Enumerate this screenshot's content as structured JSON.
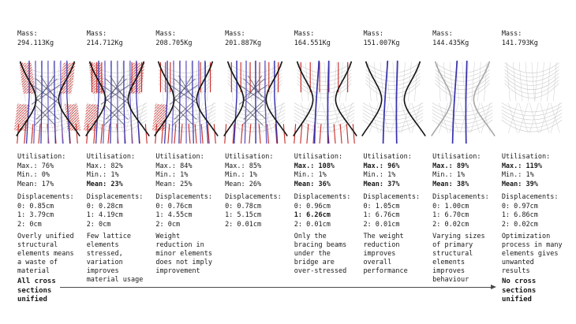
{
  "labels": {
    "mass": "Mass:",
    "utilisation": "Utilisation:",
    "max": "Max.:",
    "min": "Min.:",
    "mean": "Mean:",
    "displacements": "Displacements:"
  },
  "axis": {
    "left_label": "All cross sections unified",
    "right_label": "No cross sections unified"
  },
  "colors": {
    "red": "#c9302c",
    "blue": "#3632ad",
    "blue_alt": "#6b5ec6",
    "mesh": "#c9c9c9",
    "lattice": "#4d4d68",
    "outline": "#141414",
    "outline_light": "#a8a8a8",
    "arrow": "#4a4a4a",
    "text": "#1a1a1a"
  },
  "columns": [
    {
      "mass": "294.113Kg",
      "utilisation": {
        "max": "76%",
        "max_bold": false,
        "min": "0%",
        "mean": "17%",
        "mean_bold": false
      },
      "displacements": [
        {
          "id": "0",
          "value": "0.85cm",
          "bold": false
        },
        {
          "id": "1",
          "value": "3.79cm",
          "bold": false
        },
        {
          "id": "2",
          "value": "0cm",
          "bold": false
        }
      ],
      "note": "Overly unified structural elements means a waste of material",
      "diagram": {
        "outline": "dark",
        "blue_lines": 7,
        "red_top_lines": 0,
        "red_top_layout": "sides",
        "red_hatch_patches": [
          "TL",
          "TR",
          "ML",
          "MR"
        ],
        "red_bottom_lines": 9,
        "dark_lattice": true
      }
    },
    {
      "mass": "214.712Kg",
      "utilisation": {
        "max": "82%",
        "max_bold": false,
        "min": "1%",
        "mean": "23%",
        "mean_bold": true
      },
      "displacements": [
        {
          "id": "0",
          "value": "0.28cm",
          "bold": false
        },
        {
          "id": "1",
          "value": "4.19cm",
          "bold": false
        },
        {
          "id": "2",
          "value": "0cm",
          "bold": false
        }
      ],
      "note": "Few lattice elements stressed, variation improves material usage",
      "diagram": {
        "outline": "dark",
        "blue_lines": 7,
        "red_top_lines": 6,
        "red_top_layout": "sides",
        "red_hatch_patches": [
          "TL",
          "TR",
          "ML"
        ],
        "red_bottom_lines": 9,
        "dark_lattice": true
      }
    },
    {
      "mass": "208.705Kg",
      "utilisation": {
        "max": "84%",
        "max_bold": false,
        "min": "1%",
        "mean": "25%",
        "mean_bold": false
      },
      "displacements": [
        {
          "id": "0",
          "value": "0.76cm",
          "bold": false
        },
        {
          "id": "1",
          "value": "4.55cm",
          "bold": false
        },
        {
          "id": "2",
          "value": "0cm",
          "bold": false
        }
      ],
      "note": "Weight reduction in minor elements does not imply improvement",
      "diagram": {
        "outline": "dark",
        "blue_lines": 7,
        "red_top_lines": 6,
        "red_top_layout": "sides",
        "red_hatch_patches": [
          "ML"
        ],
        "red_bottom_lines": 10,
        "dark_lattice": true
      }
    },
    {
      "mass": "201.887Kg",
      "utilisation": {
        "max": "85%",
        "max_bold": false,
        "min": "1%",
        "mean": "26%",
        "mean_bold": false
      },
      "displacements": [
        {
          "id": "0",
          "value": "0.78cm",
          "bold": false
        },
        {
          "id": "1",
          "value": "5.15cm",
          "bold": false
        },
        {
          "id": "2",
          "value": "0.01cm",
          "bold": false
        }
      ],
      "note": "",
      "diagram": {
        "outline": "dark",
        "blue_lines": 5,
        "red_top_lines": 6,
        "red_top_layout": "center",
        "red_hatch_patches": [],
        "red_bottom_lines": 8,
        "dark_lattice": true
      }
    },
    {
      "mass": "164.551Kg",
      "utilisation": {
        "max": "108%",
        "max_bold": true,
        "min": "1%",
        "mean": "36%",
        "mean_bold": true
      },
      "displacements": [
        {
          "id": "0",
          "value": "0.96cm",
          "bold": false
        },
        {
          "id": "1",
          "value": "6.26cm",
          "bold": true
        },
        {
          "id": "2",
          "value": "0.01cm",
          "bold": false
        }
      ],
      "note": "Only the bracing beams under the bridge are over-stressed",
      "diagram": {
        "outline": "dark",
        "blue_lines": 2,
        "red_top_lines": 6,
        "red_top_layout": "center",
        "red_hatch_patches": [],
        "red_bottom_lines": 10,
        "dark_lattice": false
      }
    },
    {
      "mass": "151.007Kg",
      "utilisation": {
        "max": "96%",
        "max_bold": true,
        "min": "1%",
        "mean": "37%",
        "mean_bold": true
      },
      "displacements": [
        {
          "id": "0",
          "value": "1.05cm",
          "bold": false
        },
        {
          "id": "1",
          "value": "6.76cm",
          "bold": false
        },
        {
          "id": "2",
          "value": "0.01cm",
          "bold": false
        }
      ],
      "note": "The weight reduction improves overall performance",
      "diagram": {
        "outline": "dark",
        "blue_lines": 2,
        "red_top_lines": 0,
        "red_top_layout": "center",
        "red_hatch_patches": [],
        "red_bottom_lines": 0,
        "dark_lattice": false
      }
    },
    {
      "mass": "144.435Kg",
      "utilisation": {
        "max": "89%",
        "max_bold": true,
        "min": "1%",
        "mean": "38%",
        "mean_bold": true
      },
      "displacements": [
        {
          "id": "0",
          "value": "1.00cm",
          "bold": false
        },
        {
          "id": "1",
          "value": "6.70cm",
          "bold": false
        },
        {
          "id": "2",
          "value": "0.02cm",
          "bold": false
        }
      ],
      "note": "Varying sizes of primary structural elements improves behaviour",
      "diagram": {
        "outline": "light",
        "blue_lines": 2,
        "red_top_lines": 0,
        "red_top_layout": "center",
        "red_hatch_patches": [],
        "red_bottom_lines": 0,
        "dark_lattice": false
      }
    },
    {
      "mass": "141.793Kg",
      "utilisation": {
        "max": "119%",
        "max_bold": true,
        "min": "1%",
        "mean": "39%",
        "mean_bold": true
      },
      "displacements": [
        {
          "id": "0",
          "value": "0.97cm",
          "bold": false
        },
        {
          "id": "1",
          "value": "6.86cm",
          "bold": false
        },
        {
          "id": "2",
          "value": "0.02cm",
          "bold": false
        }
      ],
      "note": "Optimization process in many elements gives unwanted results",
      "diagram": {
        "outline": "none",
        "blue_lines": 0,
        "red_top_lines": 0,
        "red_top_layout": "center",
        "red_hatch_patches": [],
        "red_bottom_lines": 0,
        "dark_lattice": false
      }
    }
  ]
}
